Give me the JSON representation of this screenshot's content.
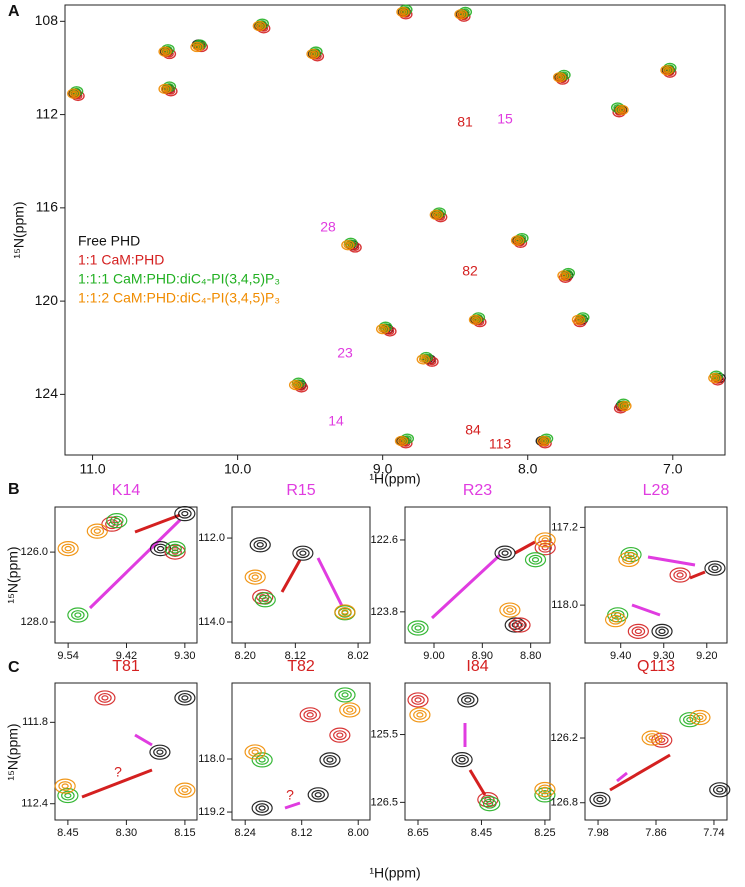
{
  "chart_data": [
    {
      "type": "scatter",
      "panel_label": "A",
      "xlabel": "¹H(ppm)",
      "ylabel": "¹⁵N(ppm)",
      "xlim": [
        11.19,
        6.64
      ],
      "ylim": [
        107.3,
        126.6
      ],
      "xticks": [
        {
          "value": 11,
          "label": "11.0"
        },
        {
          "value": 10,
          "label": "10.0"
        },
        {
          "value": 9,
          "label": "9.0"
        },
        {
          "value": 8,
          "label": "8.0"
        },
        {
          "value": 7,
          "label": "7.0"
        }
      ],
      "yticks": [
        108,
        112,
        116,
        120,
        124
      ],
      "series": [
        {
          "name": "Free PHD",
          "color": "#111111",
          "x": [
            11.12,
            10.49,
            10.27,
            10.48,
            9.84,
            9.47,
            8.85,
            8.45,
            7.77,
            7.36,
            7.03,
            8.62,
            9.21,
            8.06,
            7.73,
            8.35,
            8.68,
            8.97,
            9.57,
            7.63,
            7.35,
            7.9,
            8.86,
            6.68
          ],
          "values": [
            111.1,
            109.3,
            109.0,
            110.9,
            108.2,
            109.4,
            107.6,
            107.7,
            110.4,
            111.8,
            110.1,
            116.3,
            117.6,
            117.4,
            118.9,
            120.8,
            122.5,
            121.2,
            123.6,
            120.8,
            124.5,
            126.0,
            126.0,
            123.3
          ]
        },
        {
          "name": "1:1 CaM:PHD",
          "color": "#d42020",
          "x": [
            11.1,
            10.47,
            10.25,
            10.46,
            9.82,
            9.45,
            8.84,
            8.44,
            7.76,
            7.37,
            7.02,
            8.6,
            9.19,
            8.05,
            7.74,
            8.33,
            8.66,
            8.95,
            9.56,
            7.64,
            7.36,
            7.88,
            8.84,
            6.69
          ],
          "values": [
            111.2,
            109.4,
            109.1,
            111.0,
            108.3,
            109.5,
            107.7,
            107.8,
            110.5,
            111.9,
            110.2,
            116.4,
            117.7,
            117.5,
            119.0,
            120.9,
            122.6,
            121.3,
            123.7,
            120.9,
            124.6,
            126.1,
            126.1,
            123.4
          ]
        },
        {
          "name": "1:1:1 CaM:PHD:diC₄-PI(3,4,5)P₃",
          "color": "#22b022",
          "x": [
            11.11,
            10.48,
            10.26,
            10.47,
            9.83,
            9.46,
            8.84,
            8.43,
            7.75,
            7.38,
            7.02,
            8.61,
            9.22,
            8.04,
            7.72,
            8.34,
            8.7,
            8.98,
            9.58,
            7.62,
            7.34,
            7.87,
            8.83,
            6.7
          ],
          "values": [
            111.0,
            109.2,
            109.0,
            110.8,
            108.1,
            109.3,
            107.5,
            107.6,
            110.3,
            111.7,
            110.0,
            116.2,
            117.5,
            117.3,
            118.8,
            120.7,
            122.4,
            121.1,
            123.5,
            120.7,
            124.4,
            125.9,
            125.9,
            123.2
          ]
        },
        {
          "name": "1:1:2 CaM:PHD:diC₄-PI(3,4,5)P₃",
          "color": "#f08c00",
          "x": [
            11.13,
            10.5,
            10.28,
            10.5,
            9.85,
            9.48,
            8.86,
            8.46,
            7.78,
            7.35,
            7.04,
            8.63,
            9.24,
            8.07,
            7.75,
            8.36,
            8.72,
            9.0,
            9.6,
            7.65,
            7.33,
            7.89,
            8.87,
            6.71
          ],
          "values": [
            111.1,
            109.3,
            109.1,
            110.9,
            108.2,
            109.4,
            107.6,
            107.7,
            110.4,
            111.8,
            110.1,
            116.3,
            117.6,
            117.4,
            118.9,
            120.8,
            122.5,
            121.2,
            123.6,
            120.8,
            124.5,
            126.0,
            126.0,
            123.3
          ]
        }
      ],
      "annotations": [
        {
          "text": "81",
          "color": "#d42020"
        },
        {
          "text": "15",
          "color": "#e03ce0"
        },
        {
          "text": "28",
          "color": "#e03ce0"
        },
        {
          "text": "82",
          "color": "#d42020"
        },
        {
          "text": "23",
          "color": "#e03ce0"
        },
        {
          "text": "14",
          "color": "#e03ce0"
        },
        {
          "text": "84",
          "color": "#d42020"
        },
        {
          "text": "113",
          "color": "#d42020"
        }
      ]
    },
    {
      "type": "scatter",
      "panel_label": "B",
      "ylabel": "¹⁵N(ppm)",
      "title": "K14",
      "title_color": "#e03ce0",
      "xlim": [
        9.567,
        9.275
      ],
      "ylim": [
        124.71,
        128.6
      ],
      "xticks": [
        9.54,
        9.42,
        {
          "value": 9.3,
          "label": "9.30"
        }
      ],
      "yticks": [
        {
          "value": 126,
          "label": "126.0"
        },
        {
          "value": 128,
          "label": "128.0"
        }
      ],
      "series": [
        {
          "color": "#111111",
          "x": [
            9.3,
            9.35
          ],
          "values": [
            124.9,
            125.9
          ]
        },
        {
          "color": "#d42020",
          "x": [
            9.45,
            9.32
          ],
          "values": [
            125.2,
            126.0
          ]
        },
        {
          "color": "#22b022",
          "x": [
            9.52,
            9.44,
            9.32
          ],
          "values": [
            127.8,
            125.1,
            125.9
          ]
        },
        {
          "color": "#f08c00",
          "x": [
            9.54,
            9.48
          ],
          "values": [
            125.9,
            125.4
          ]
        }
      ]
    },
    {
      "type": "scatter",
      "title": "R15",
      "title_color": "#e03ce0",
      "xlim": [
        8.221,
        8.001
      ],
      "ylim": [
        111.26,
        114.5
      ],
      "xticks": [
        {
          "value": 8.2,
          "label": "8.20"
        },
        8.12,
        8.02
      ],
      "yticks": [
        {
          "value": 112,
          "label": "112.0"
        },
        {
          "value": 114,
          "label": "114.0"
        }
      ],
      "series": [
        {
          "color": "#111111",
          "x": [
            8.108,
            8.176
          ],
          "values": [
            112.36,
            112.16
          ]
        },
        {
          "color": "#d42020",
          "x": [
            8.172
          ],
          "values": [
            113.4
          ]
        },
        {
          "color": "#22b022",
          "x": [
            8.168,
            8.041
          ],
          "values": [
            113.47,
            113.78
          ]
        },
        {
          "color": "#f08c00",
          "x": [
            8.184,
            8.041
          ],
          "values": [
            112.93,
            113.76
          ]
        }
      ]
    },
    {
      "type": "scatter",
      "title": "R23",
      "title_color": "#e03ce0",
      "xlim": [
        9.06,
        8.76
      ],
      "ylim": [
        122.05,
        124.32
      ],
      "xticks": [
        {
          "value": 9,
          "label": "9.00"
        },
        {
          "value": 8.9,
          "label": "8.90"
        },
        {
          "value": 8.8,
          "label": "8.80"
        }
      ],
      "yticks": [
        122.6,
        123.8
      ],
      "series": [
        {
          "color": "#111111",
          "x": [
            8.853,
            8.832
          ],
          "values": [
            122.82,
            124.02
          ]
        },
        {
          "color": "#d42020",
          "x": [
            8.77,
            8.822
          ],
          "values": [
            122.73,
            124.02
          ]
        },
        {
          "color": "#22b022",
          "x": [
            9.033,
            8.79
          ],
          "values": [
            124.07,
            122.93
          ]
        },
        {
          "color": "#f08c00",
          "x": [
            8.77,
            8.843
          ],
          "values": [
            122.6,
            123.77
          ]
        }
      ]
    },
    {
      "type": "scatter",
      "title": "L28",
      "title_color": "#e03ce0",
      "xlim": [
        9.483,
        9.153
      ],
      "ylim": [
        116.99,
        118.39
      ],
      "xticks": [
        {
          "value": 9.4,
          "label": "9.40"
        },
        {
          "value": 9.3,
          "label": "9.30"
        },
        {
          "value": 9.2,
          "label": "9.20"
        }
      ],
      "yticks": [
        117.2,
        {
          "value": 118,
          "label": "118.0"
        }
      ],
      "series": [
        {
          "color": "#111111",
          "x": [
            9.181,
            9.304
          ],
          "values": [
            117.62,
            118.27
          ]
        },
        {
          "color": "#d42020",
          "x": [
            9.262,
            9.359
          ],
          "values": [
            117.69,
            118.27
          ]
        },
        {
          "color": "#22b022",
          "x": [
            9.376,
            9.407
          ],
          "values": [
            117.48,
            118.1
          ]
        },
        {
          "color": "#f08c00",
          "x": [
            9.381,
            9.412
          ],
          "values": [
            117.53,
            118.15
          ]
        }
      ]
    },
    {
      "type": "scatter",
      "panel_label": "C",
      "ylabel": "¹⁵N(ppm)",
      "xlabel": "¹H(ppm)",
      "title": "T81",
      "title_color": "#d42020",
      "xlim": [
        8.483,
        8.119
      ],
      "ylim": [
        111.51,
        112.52
      ],
      "xticks": [
        8.45,
        {
          "value": 8.3,
          "label": "8.30"
        },
        8.15
      ],
      "yticks": [
        111.8,
        112.4
      ],
      "series": [
        {
          "color": "#111111",
          "x": [
            8.15,
            8.214
          ],
          "values": [
            111.62,
            112.02
          ]
        },
        {
          "color": "#d42020",
          "x": [
            8.355
          ],
          "values": [
            111.62
          ]
        },
        {
          "color": "#22b022",
          "x": [
            8.45
          ],
          "values": [
            112.34
          ]
        },
        {
          "color": "#f08c00",
          "x": [
            8.15,
            8.457
          ],
          "values": [
            112.3,
            112.27
          ]
        }
      ],
      "annotations": [
        {
          "text": "?",
          "color": "#d42020"
        }
      ]
    },
    {
      "type": "scatter",
      "title": "T82",
      "title_color": "#d42020",
      "xlim": [
        8.268,
        7.975
      ],
      "ylim": [
        116.28,
        119.38
      ],
      "xticks": [
        8.24,
        8.12,
        {
          "value": 8,
          "label": "8.00"
        }
      ],
      "yticks": [
        {
          "value": 118,
          "label": "118.0"
        },
        119.2
      ],
      "series": [
        {
          "color": "#111111",
          "x": [
            8.204,
            8.06,
            8.085
          ],
          "values": [
            119.11,
            118.02,
            118.81
          ]
        },
        {
          "color": "#d42020",
          "x": [
            8.102,
            8.039
          ],
          "values": [
            117.0,
            117.46
          ]
        },
        {
          "color": "#22b022",
          "x": [
            8.204,
            8.028
          ],
          "values": [
            118.02,
            116.55
          ]
        },
        {
          "color": "#f08c00",
          "x": [
            8.219,
            8.018
          ],
          "values": [
            117.84,
            116.89
          ]
        }
      ],
      "annotations": [
        {
          "text": "?",
          "color": "#d42020"
        }
      ]
    },
    {
      "type": "scatter",
      "title": "I84",
      "title_color": "#d42020",
      "xlim": [
        8.691,
        8.234
      ],
      "ylim": [
        124.74,
        126.76
      ],
      "xticks": [
        8.65,
        8.45,
        8.25
      ],
      "yticks": [
        125.5,
        126.5
      ],
      "series": [
        {
          "color": "#111111",
          "x": [
            8.511,
            8.493
          ],
          "values": [
            125.87,
            124.99
          ]
        },
        {
          "color": "#d42020",
          "x": [
            8.65,
            8.43
          ],
          "values": [
            124.99,
            126.46
          ]
        },
        {
          "color": "#22b022",
          "x": [
            8.424,
            8.25
          ],
          "values": [
            126.52,
            126.39
          ]
        },
        {
          "color": "#f08c00",
          "x": [
            8.644,
            8.25
          ],
          "values": [
            125.21,
            126.31
          ]
        }
      ]
    },
    {
      "type": "scatter",
      "title": "Q113",
      "title_color": "#d42020",
      "xlim": [
        8.007,
        7.713
      ],
      "ylim": [
        125.69,
        126.96
      ],
      "xticks": [
        7.98,
        7.86,
        7.74
      ],
      "yticks": [
        126.2,
        126.8
      ],
      "series": [
        {
          "color": "#111111",
          "x": [
            7.976,
            7.728
          ],
          "values": [
            126.77,
            126.68
          ]
        },
        {
          "color": "#d42020",
          "x": [
            7.848
          ],
          "values": [
            126.22
          ]
        },
        {
          "color": "#22b022",
          "x": [
            7.79
          ],
          "values": [
            126.03
          ]
        },
        {
          "color": "#f08c00",
          "x": [
            7.769,
            7.868
          ],
          "values": [
            126.01,
            126.2
          ]
        }
      ]
    }
  ]
}
